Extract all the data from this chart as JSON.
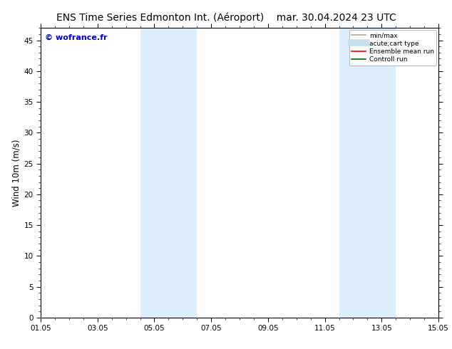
{
  "title": "ENS Time Series Edmonton Int. (Aéroport)    mar. 30.04.2024 23 UTC",
  "ylabel": "Wind 10m (m/s)",
  "xlabel_ticks": [
    "01.05",
    "03.05",
    "05.05",
    "07.05",
    "09.05",
    "11.05",
    "13.05",
    "15.05"
  ],
  "xtick_positions": [
    0,
    2,
    4,
    6,
    8,
    10,
    12,
    14
  ],
  "xlim": [
    0,
    14
  ],
  "ylim": [
    0,
    47
  ],
  "yticks": [
    0,
    5,
    10,
    15,
    20,
    25,
    30,
    35,
    40,
    45
  ],
  "shaded_bands": [
    {
      "xmin": 3.5,
      "xmax": 5.5
    },
    {
      "xmin": 10.5,
      "xmax": 12.5
    }
  ],
  "shade_color": "#ddeeff",
  "background_color": "#ffffff",
  "border_color": "#000000",
  "watermark_text": "© wofrance.fr",
  "watermark_color": "#0000cc",
  "legend_entries": [
    {
      "label": "min/max",
      "color": "#aaaaaa",
      "lw": 1.2
    },
    {
      "label": "acute;cart type",
      "color": "#c8dff0",
      "lw": 7
    },
    {
      "label": "Ensemble mean run",
      "color": "#ff0000",
      "lw": 1.2
    },
    {
      "label": "Controll run",
      "color": "#006600",
      "lw": 1.2
    }
  ],
  "title_fontsize": 10,
  "tick_fontsize": 7.5,
  "ylabel_fontsize": 8.5,
  "watermark_fontsize": 8
}
